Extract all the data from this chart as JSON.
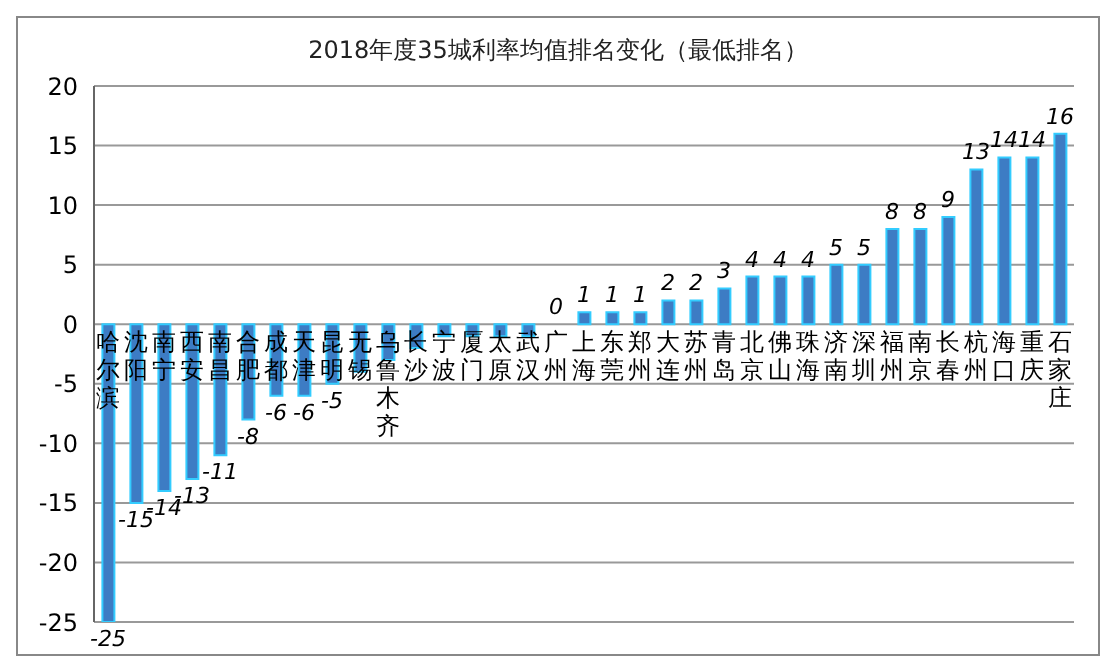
{
  "chart_data": {
    "type": "bar",
    "title": "2018年度35城利率均值排名变化（最低排名）",
    "categories": [
      "哈尔滨",
      "沈阳",
      "南宁",
      "西安",
      "南昌",
      "合肥",
      "成都",
      "天津",
      "昆明",
      "无锡",
      "乌鲁木齐",
      "长沙",
      "宁波",
      "厦门",
      "太原",
      "武汉",
      "广州",
      "上海",
      "东莞",
      "郑州",
      "大连",
      "苏州",
      "青岛",
      "北京",
      "佛山",
      "珠海",
      "济南",
      "深圳",
      "福州",
      "南京",
      "长春",
      "杭州",
      "海口",
      "重庆",
      "石家庄"
    ],
    "values": [
      -25,
      -15,
      -14,
      -13,
      -11,
      -8,
      -6,
      -6,
      -5,
      -4,
      -3,
      -2,
      -1,
      -1,
      -1,
      -1,
      0,
      1,
      1,
      1,
      2,
      2,
      3,
      4,
      4,
      4,
      5,
      5,
      8,
      8,
      9,
      13,
      14,
      14,
      16
    ],
    "value_labels": [
      "-25",
      "-15",
      "-14",
      "-13",
      "-11",
      "-8",
      "-6",
      "-6",
      "-5",
      null,
      null,
      null,
      null,
      null,
      null,
      null,
      "0",
      "1",
      "1",
      "1",
      "2",
      "2",
      "3",
      "4",
      "4",
      "4",
      "5",
      "5",
      "8",
      "8",
      "9",
      "13",
      "14",
      "14",
      "16"
    ],
    "color": "#3d7cc4",
    "ylim": [
      -25,
      20
    ],
    "yticks": [
      -25,
      -20,
      -15,
      -10,
      -5,
      0,
      5,
      10,
      15,
      20
    ],
    "grid": "y"
  }
}
